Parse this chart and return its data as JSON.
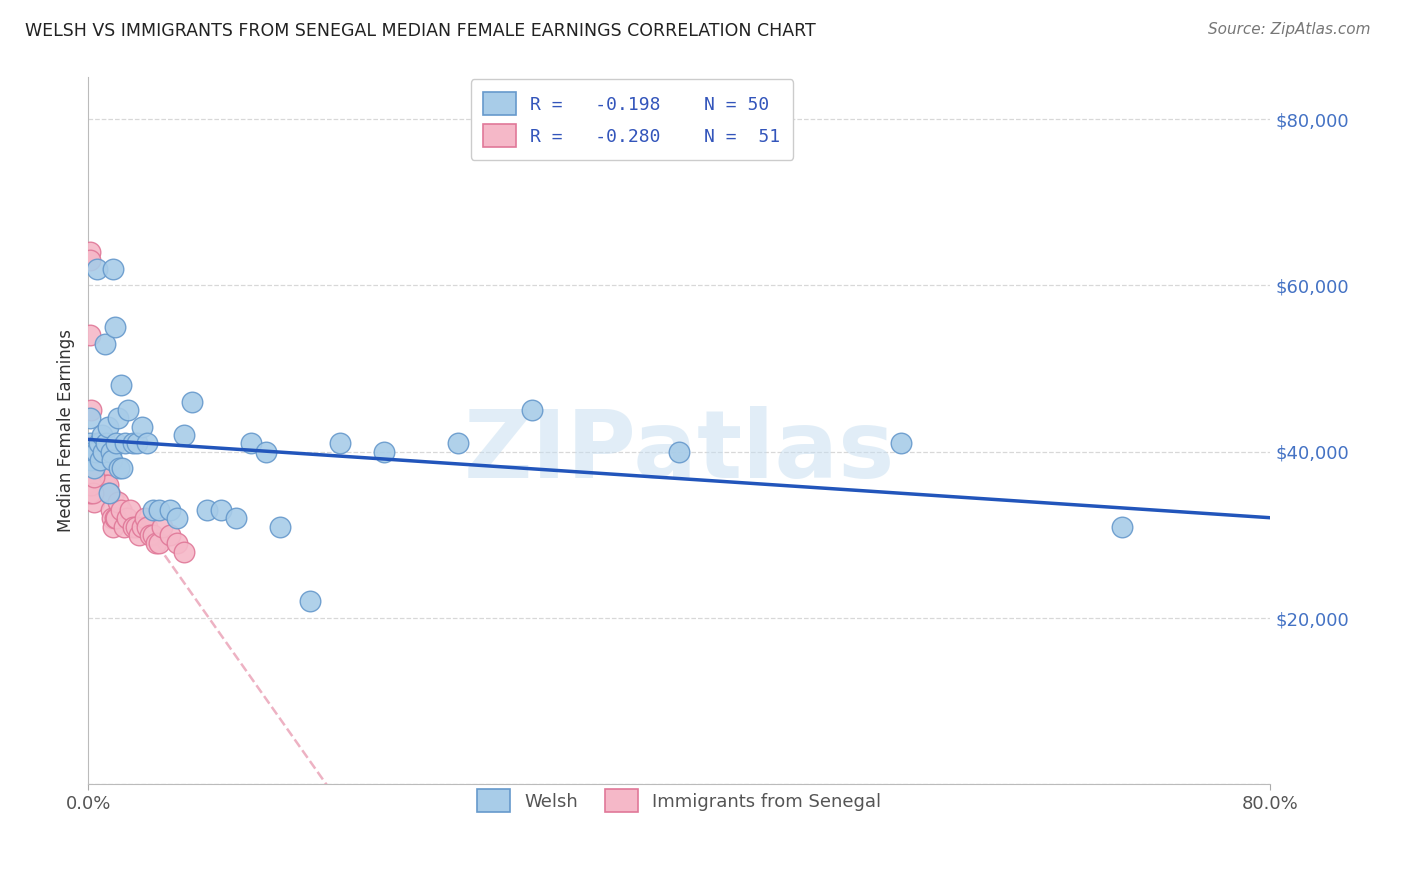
{
  "title": "WELSH VS IMMIGRANTS FROM SENEGAL MEDIAN FEMALE EARNINGS CORRELATION CHART",
  "source": "Source: ZipAtlas.com",
  "ylabel": "Median Female Earnings",
  "watermark": "ZIPatlas",
  "xlim": [
    0,
    0.8
  ],
  "ylim": [
    0,
    85000
  ],
  "yticks": [
    0,
    20000,
    40000,
    60000,
    80000
  ],
  "xticks": [
    0.0,
    0.8
  ],
  "background_color": "#ffffff",
  "grid_color": "#d8d8d8",
  "welsh_color": "#a8cce8",
  "welsh_edge_color": "#6699cc",
  "senegal_color": "#f5b8c8",
  "senegal_edge_color": "#e07898",
  "welsh_trendline_color": "#2255bb",
  "senegal_trendline_color": "#dd6688",
  "welsh_scatter_x": [
    0.001,
    0.001,
    0.002,
    0.003,
    0.004,
    0.005,
    0.006,
    0.007,
    0.008,
    0.009,
    0.01,
    0.011,
    0.012,
    0.013,
    0.014,
    0.015,
    0.016,
    0.017,
    0.018,
    0.019,
    0.02,
    0.021,
    0.022,
    0.023,
    0.025,
    0.027,
    0.03,
    0.033,
    0.036,
    0.04,
    0.044,
    0.048,
    0.055,
    0.06,
    0.065,
    0.07,
    0.08,
    0.09,
    0.1,
    0.11,
    0.12,
    0.13,
    0.15,
    0.17,
    0.2,
    0.25,
    0.3,
    0.4,
    0.55,
    0.7
  ],
  "welsh_scatter_y": [
    41000,
    44000,
    39000,
    40000,
    38000,
    40000,
    62000,
    41000,
    39000,
    42000,
    40000,
    53000,
    41000,
    43000,
    35000,
    40000,
    39000,
    62000,
    55000,
    41000,
    44000,
    38000,
    48000,
    38000,
    41000,
    45000,
    41000,
    41000,
    43000,
    41000,
    33000,
    33000,
    33000,
    32000,
    42000,
    46000,
    33000,
    33000,
    32000,
    41000,
    40000,
    31000,
    22000,
    41000,
    40000,
    41000,
    45000,
    40000,
    41000,
    31000
  ],
  "senegal_scatter_x": [
    0.001,
    0.001,
    0.002,
    0.002,
    0.002,
    0.003,
    0.003,
    0.004,
    0.004,
    0.005,
    0.005,
    0.006,
    0.006,
    0.007,
    0.007,
    0.008,
    0.009,
    0.01,
    0.011,
    0.012,
    0.013,
    0.014,
    0.015,
    0.016,
    0.017,
    0.018,
    0.019,
    0.02,
    0.022,
    0.024,
    0.026,
    0.028,
    0.03,
    0.032,
    0.034,
    0.036,
    0.038,
    0.04,
    0.042,
    0.044,
    0.046,
    0.048,
    0.05,
    0.055,
    0.06,
    0.065,
    0.001,
    0.001,
    0.002,
    0.003,
    0.004
  ],
  "senegal_scatter_y": [
    64000,
    63000,
    45000,
    38000,
    36000,
    38000,
    37000,
    38000,
    34000,
    37000,
    36000,
    41000,
    38000,
    41000,
    40000,
    37000,
    38000,
    36000,
    38000,
    36000,
    36000,
    35000,
    33000,
    32000,
    31000,
    32000,
    32000,
    34000,
    33000,
    31000,
    32000,
    33000,
    31000,
    31000,
    30000,
    31000,
    32000,
    31000,
    30000,
    30000,
    29000,
    29000,
    31000,
    30000,
    29000,
    28000,
    35000,
    54000,
    36000,
    35000,
    37000
  ],
  "legend_r_welsh": "R =  -0.198",
  "legend_n_welsh": "N = 50",
  "legend_r_senegal": "R =  -0.280",
  "legend_n_senegal": "N =  51"
}
